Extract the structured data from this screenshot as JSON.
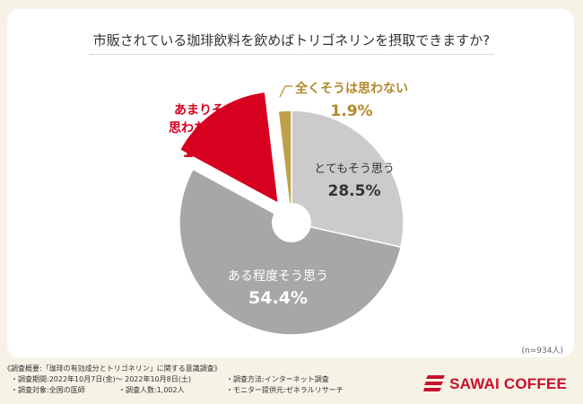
{
  "title": "市販されている珈琲飲料を飲めばトリゴネリンを摂取できますか?",
  "sample_note": "(n=934人)",
  "chart_data": {
    "type": "pie",
    "title": "市販されている珈琲飲料を飲めばトリゴネリンを摂取できますか?",
    "slices": [
      {
        "label": "とてもそう思う",
        "value": 28.5,
        "value_text": "28.5%",
        "color": "#cbcbcb"
      },
      {
        "label": "ある程度そう思う",
        "value": 54.4,
        "value_text": "54.4%",
        "color": "#a7a7a7"
      },
      {
        "label": "あまりそうは思わない",
        "value": 15.2,
        "value_text": "15.2%",
        "color": "#d7001f"
      },
      {
        "label": "全くそうは思わない",
        "value": 1.9,
        "value_text": "1.9%",
        "color": "#c0a04a"
      }
    ]
  },
  "footer": {
    "overview": "《調査概要:「珈琲の有効成分とトリゴネリン」に関する意識調査》",
    "period": "・調査期間:2022年10月7日(金)～ 2022年10月8日(土)",
    "method": "・調査方法:インターネット調査",
    "target": "・調査対象:全国の医師",
    "count": "・調査人数:1,002人",
    "provider": "・モニター提供元:ゼネラルリサーチ"
  },
  "brand": {
    "name": "SAWAI COFFEE",
    "color": "#c8102e"
  }
}
